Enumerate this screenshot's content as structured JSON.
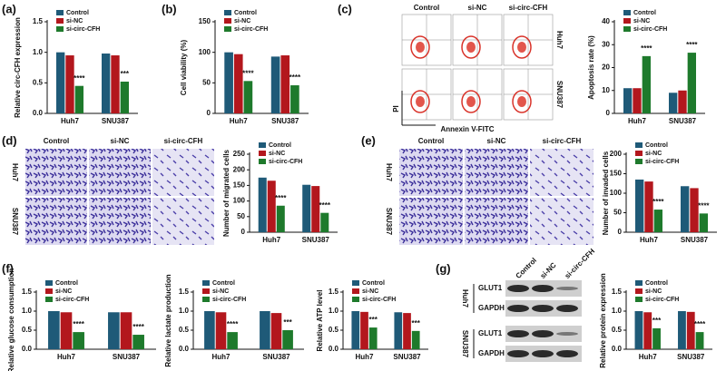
{
  "chart_data": [
    {
      "type": "bar",
      "panel": "(a)",
      "ylabel": "Relative circ-CFH expression",
      "categories": [
        "Huh7",
        "SNU387"
      ],
      "series": [
        {
          "name": "Control",
          "color": "#1f5a78",
          "values": [
            1.0,
            0.98
          ]
        },
        {
          "name": "si-NC",
          "color": "#b3171d",
          "values": [
            0.95,
            0.95
          ]
        },
        {
          "name": "si-circ-CFH",
          "color": "#1e7a2c",
          "values": [
            0.45,
            0.52
          ]
        }
      ],
      "ylim": [
        0,
        1.5
      ],
      "yticks": [
        {
          "value": 0,
          "label": "0.0"
        },
        0.5,
        {
          "value": 1,
          "label": "1.0"
        },
        1.5
      ],
      "annotations": [
        "****",
        "***"
      ]
    },
    {
      "type": "bar",
      "panel": "(b)",
      "ylabel": "Cell viability (%)",
      "categories": [
        "Huh7",
        "SNU387"
      ],
      "series": [
        {
          "name": "Control",
          "color": "#1f5a78",
          "values": [
            100,
            93
          ]
        },
        {
          "name": "si-NC",
          "color": "#b3171d",
          "values": [
            97,
            95
          ]
        },
        {
          "name": "si-circ-CFH",
          "color": "#1e7a2c",
          "values": [
            53,
            46
          ]
        }
      ],
      "ylim": [
        0,
        150
      ],
      "yticks": [
        0,
        50,
        100,
        150
      ],
      "annotations": [
        "****",
        "****"
      ]
    },
    {
      "type": "bar",
      "panel": "(c)",
      "ylabel": "Apoptosis rate (%)",
      "categories": [
        "Huh7",
        "SNU387"
      ],
      "series": [
        {
          "name": "Control",
          "color": "#1f5a78",
          "values": [
            11,
            9
          ]
        },
        {
          "name": "si-NC",
          "color": "#b3171d",
          "values": [
            11,
            10
          ]
        },
        {
          "name": "si-circ-CFH",
          "color": "#1e7a2c",
          "values": [
            25,
            26.5
          ]
        }
      ],
      "ylim": [
        0,
        40
      ],
      "yticks": [
        0,
        10,
        20,
        30,
        40
      ],
      "annotations": [
        "****",
        "****"
      ]
    },
    {
      "type": "bar",
      "panel": "(d)",
      "ylabel": "Number of migrated cells",
      "categories": [
        "Huh7",
        "SNU387"
      ],
      "series": [
        {
          "name": "Control",
          "color": "#1f5a78",
          "values": [
            175,
            152
          ]
        },
        {
          "name": "si-NC",
          "color": "#b3171d",
          "values": [
            165,
            148
          ]
        },
        {
          "name": "si-circ-CFH",
          "color": "#1e7a2c",
          "values": [
            85,
            62
          ]
        }
      ],
      "ylim": [
        0,
        250
      ],
      "yticks": [
        0,
        50,
        100,
        150,
        200,
        250
      ],
      "annotations": [
        "****",
        "****"
      ]
    },
    {
      "type": "bar",
      "panel": "(e)",
      "ylabel": "Number of invaded cells",
      "categories": [
        "Huh7",
        "SNU387"
      ],
      "series": [
        {
          "name": "Control",
          "color": "#1f5a78",
          "values": [
            135,
            118
          ]
        },
        {
          "name": "si-NC",
          "color": "#b3171d",
          "values": [
            130,
            113
          ]
        },
        {
          "name": "si-circ-CFH",
          "color": "#1e7a2c",
          "values": [
            58,
            48
          ]
        }
      ],
      "ylim": [
        0,
        200
      ],
      "yticks": [
        0,
        50,
        100,
        150,
        200
      ],
      "annotations": [
        "****",
        "****"
      ]
    },
    {
      "type": "bar",
      "panel": "(f)",
      "ylabel": "Relative glucose consumption",
      "categories": [
        "Huh7",
        "SNU387"
      ],
      "series": [
        {
          "name": "Control",
          "color": "#1f5a78",
          "values": [
            1.0,
            0.97
          ]
        },
        {
          "name": "si-NC",
          "color": "#b3171d",
          "values": [
            0.97,
            0.97
          ]
        },
        {
          "name": "si-circ-CFH",
          "color": "#1e7a2c",
          "values": [
            0.45,
            0.38
          ]
        }
      ],
      "ylim": [
        0,
        1.5
      ],
      "yticks": [
        {
          "value": 0,
          "label": "0.0"
        },
        0.5,
        {
          "value": 1,
          "label": "1.0"
        },
        1.5
      ],
      "annotations": [
        "****",
        "****"
      ]
    },
    {
      "type": "bar",
      "ylabel": "Relative lactate production",
      "categories": [
        "Huh7",
        "SNU387"
      ],
      "series": [
        {
          "name": "Control",
          "color": "#1f5a78",
          "values": [
            1.0,
            1.0
          ]
        },
        {
          "name": "si-NC",
          "color": "#b3171d",
          "values": [
            0.97,
            0.95
          ]
        },
        {
          "name": "si-circ-CFH",
          "color": "#1e7a2c",
          "values": [
            0.45,
            0.5
          ]
        }
      ],
      "ylim": [
        0,
        1.5
      ],
      "yticks": [
        {
          "value": 0,
          "label": "0.0"
        },
        0.5,
        {
          "value": 1,
          "label": "1.0"
        },
        1.5
      ],
      "annotations": [
        "****",
        "***"
      ]
    },
    {
      "type": "bar",
      "ylabel": "Relative ATP level",
      "categories": [
        "Huh7",
        "SNU387"
      ],
      "series": [
        {
          "name": "Control",
          "color": "#1f5a78",
          "values": [
            1.0,
            0.97
          ]
        },
        {
          "name": "si-NC",
          "color": "#b3171d",
          "values": [
            0.98,
            0.95
          ]
        },
        {
          "name": "si-circ-CFH",
          "color": "#1e7a2c",
          "values": [
            0.57,
            0.48
          ]
        }
      ],
      "ylim": [
        0,
        1.5
      ],
      "yticks": [
        {
          "value": 0,
          "label": "0.0"
        },
        0.5,
        {
          "value": 1,
          "label": "1.0"
        },
        1.5
      ],
      "annotations": [
        "***",
        "***"
      ]
    },
    {
      "type": "bar",
      "panel": "(g)",
      "ylabel": "Relative protein expression",
      "categories": [
        "Huh7",
        "SNU387"
      ],
      "series": [
        {
          "name": "Control",
          "color": "#1f5a78",
          "values": [
            1.0,
            1.0
          ]
        },
        {
          "name": "si-NC",
          "color": "#b3171d",
          "values": [
            0.97,
            0.98
          ]
        },
        {
          "name": "si-circ-CFH",
          "color": "#1e7a2c",
          "values": [
            0.55,
            0.45
          ]
        }
      ],
      "ylim": [
        0,
        1.5
      ],
      "yticks": [
        {
          "value": 0,
          "label": "0.0"
        },
        0.5,
        {
          "value": 1,
          "label": "1.0"
        },
        1.5
      ],
      "annotations": [
        "***",
        "****"
      ]
    }
  ],
  "images": {
    "flow": {
      "columns": [
        "Control",
        "si-NC",
        "si-circ-CFH"
      ],
      "rows": [
        "Huh7",
        "SNU387"
      ],
      "y_axis": "PI",
      "x_axis": "Annexin V-FITC"
    },
    "migration": {
      "columns": [
        "Control",
        "si-NC",
        "si-circ-CFH"
      ],
      "rows": [
        "Huh7",
        "SNU387"
      ]
    },
    "invasion": {
      "columns": [
        "Control",
        "si-NC",
        "si-circ-CFH"
      ],
      "rows": [
        "Huh7",
        "SNU387"
      ]
    },
    "blot": {
      "columns": [
        "Control",
        "si-NC",
        "si-circ-CFH"
      ],
      "groups": [
        {
          "name": "Huh7",
          "bands": [
            "GLUT1",
            "GAPDH"
          ]
        },
        {
          "name": "SNU387",
          "bands": [
            "GLUT1",
            "GAPDH"
          ]
        }
      ]
    }
  }
}
